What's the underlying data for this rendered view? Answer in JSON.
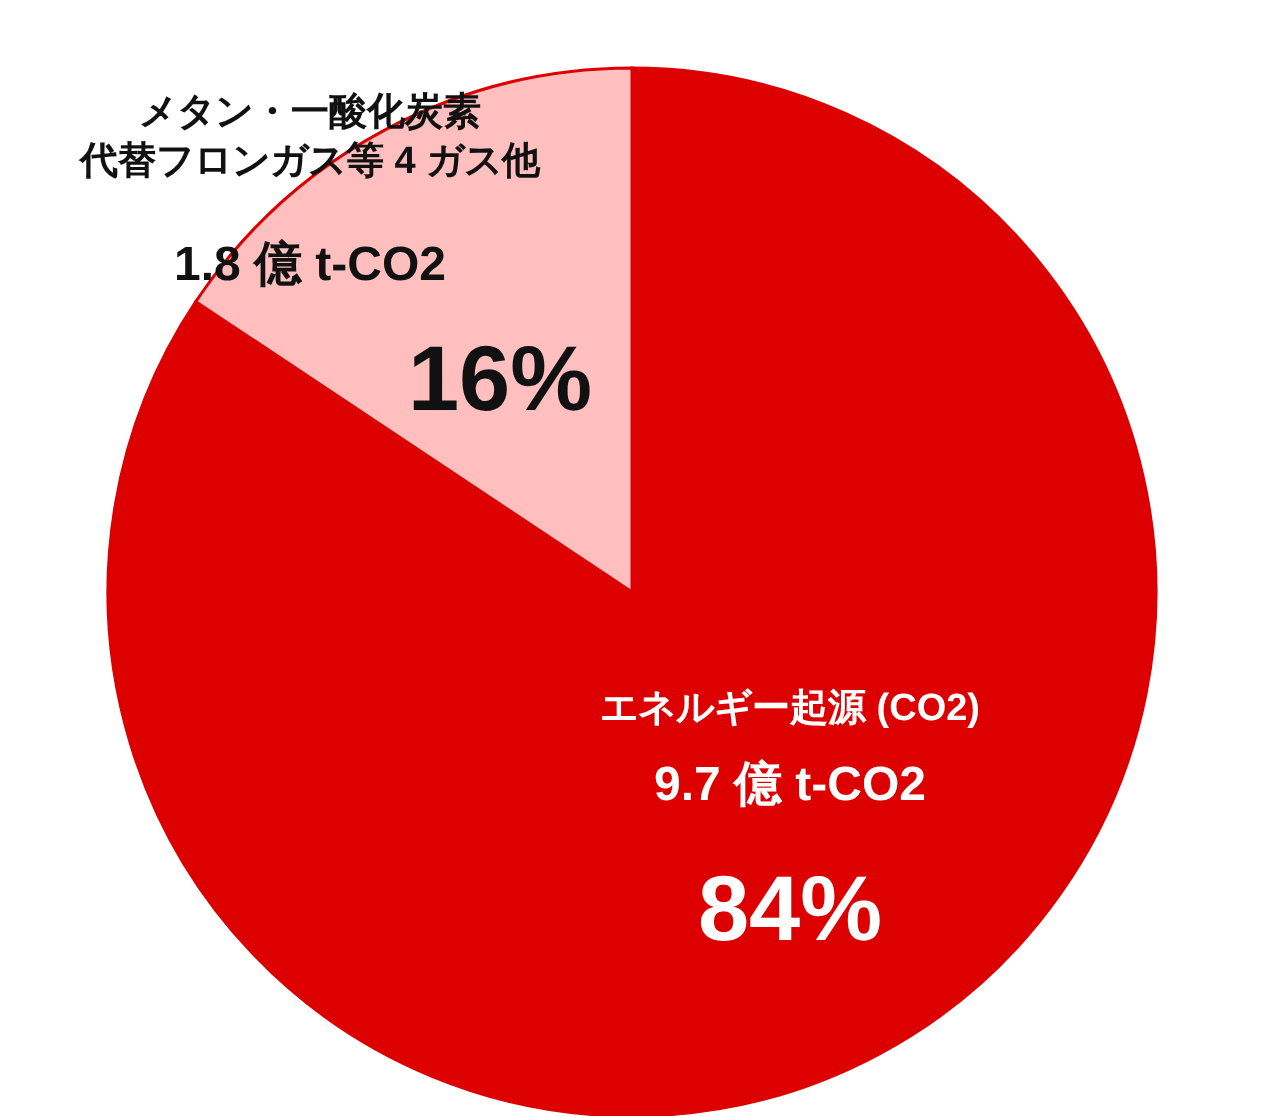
{
  "chart_data": {
    "type": "pie",
    "categories": [
      "エネルギー起源 (CO2)",
      "メタン・一酸化炭素代替フロンガス等 4 ガス他"
    ],
    "values": [
      9.7,
      1.8
    ],
    "colors": [
      "#dc0000",
      "#ffbfbf"
    ],
    "value_labels": [
      "9.7 億 t-CO2",
      "1.8 億 t-CO2"
    ],
    "annotations": [
      "84%",
      "16%"
    ]
  }
}
